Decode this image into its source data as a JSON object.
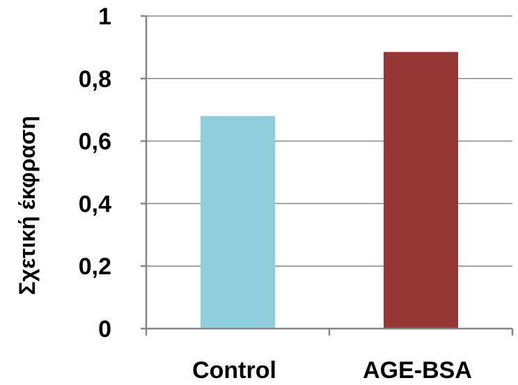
{
  "chart_data": {
    "type": "bar",
    "categories": [
      "Control",
      "AGE-BSA"
    ],
    "values": [
      0.68,
      0.885
    ],
    "colors": [
      "#92cddc",
      "#953735"
    ],
    "ylabel": "Σχετική έκφραση",
    "xlabel": "",
    "title": "",
    "ylim": [
      0,
      1
    ],
    "yticks": [
      "0",
      "0,2",
      "0,4",
      "0,6",
      "0,8",
      "1"
    ],
    "grid": true
  }
}
